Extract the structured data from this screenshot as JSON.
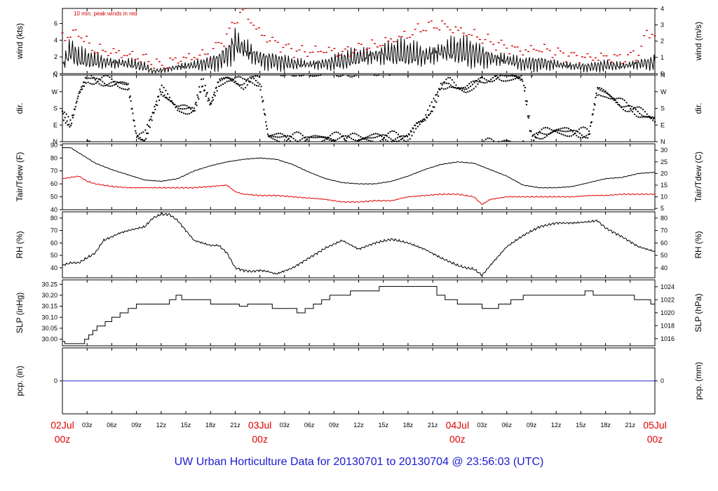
{
  "colors": {
    "axis": "#000000",
    "peak": "#d40000",
    "dewpoint": "#e00000",
    "precip": "#2020c0",
    "date_label": "#e00000",
    "footer": "#1a1ad2"
  },
  "footer": {
    "text": "UW Urban Horticulture Data for 20130701  to  20130704 @ 23:56:03  (UTC)"
  },
  "chart_data": {
    "type": "line",
    "x_range": [
      "2013-07-02 00z",
      "2013-07-05 00z"
    ],
    "x_ticks": [
      {
        "hour": 0,
        "label": "02Jul",
        "sub": "00z",
        "major": true
      },
      {
        "hour": 3,
        "label": "03z"
      },
      {
        "hour": 6,
        "label": "06z"
      },
      {
        "hour": 9,
        "label": "09z"
      },
      {
        "hour": 12,
        "label": "12z"
      },
      {
        "hour": 15,
        "label": "15z"
      },
      {
        "hour": 18,
        "label": "18z"
      },
      {
        "hour": 21,
        "label": "21z"
      },
      {
        "hour": 24,
        "label": "03Jul",
        "sub": "00z",
        "major": true
      },
      {
        "hour": 27,
        "label": "03z"
      },
      {
        "hour": 30,
        "label": "06z"
      },
      {
        "hour": 33,
        "label": "09z"
      },
      {
        "hour": 36,
        "label": "12z"
      },
      {
        "hour": 39,
        "label": "15z"
      },
      {
        "hour": 42,
        "label": "18z"
      },
      {
        "hour": 45,
        "label": "21z"
      },
      {
        "hour": 48,
        "label": "04Jul",
        "sub": "00z",
        "major": true
      },
      {
        "hour": 51,
        "label": "03z"
      },
      {
        "hour": 54,
        "label": "06z"
      },
      {
        "hour": 57,
        "label": "09z"
      },
      {
        "hour": 60,
        "label": "12z"
      },
      {
        "hour": 63,
        "label": "15z"
      },
      {
        "hour": 66,
        "label": "18z"
      },
      {
        "hour": 69,
        "label": "21z"
      },
      {
        "hour": 72,
        "label": "05Jul",
        "sub": "00z",
        "major": true
      }
    ],
    "panels": [
      {
        "id": "wind",
        "ylabel_left": "wind (kts)",
        "ylabel_right": "wind (m/s)",
        "ylim": [
          0,
          7.8
        ],
        "left_ticks": [
          0,
          2,
          4,
          6
        ],
        "right_ticks": [
          0,
          1,
          2,
          3,
          4
        ],
        "right_factor": 0.5144,
        "annotation": "10 min. peak winds in red",
        "series": [
          {
            "role": "wind-speed",
            "x": [
              0,
              1,
              2,
              4,
              6,
              8,
              10,
              11,
              12,
              14,
              16,
              18,
              19,
              20,
              21,
              22,
              23,
              24,
              26,
              28,
              30,
              32,
              34,
              36,
              38,
              40,
              42,
              44,
              46,
              48,
              50,
              52,
              54,
              56,
              58,
              60,
              62,
              64,
              66,
              68,
              70,
              72
            ],
            "y": [
              1.0,
              2.8,
              1.8,
              1.5,
              1.3,
              1.2,
              0.8,
              0.3,
              0.4,
              0.8,
              1.0,
              1.3,
              1.6,
              2.3,
              3.6,
              3.0,
              2.4,
              1.8,
              1.5,
              1.2,
              1.1,
              1.2,
              1.5,
              1.9,
              2.2,
              2.4,
              2.3,
              2.1,
              2.6,
              2.7,
              2.4,
              1.9,
              1.6,
              1.2,
              1.3,
              1.1,
              0.9,
              0.8,
              1.0,
              0.9,
              1.2,
              1.3
            ]
          },
          {
            "role": "peak-gust",
            "x": [
              1,
              2,
              3,
              4,
              6,
              8,
              10,
              12,
              14,
              16,
              18,
              20,
              21,
              22,
              24,
              26,
              28,
              30,
              32,
              34,
              36,
              38,
              40,
              42,
              44,
              46,
              48,
              50,
              52,
              54,
              56,
              58,
              60,
              62,
              64,
              66,
              68,
              70,
              71
            ],
            "y": [
              4.5,
              5.0,
              3.6,
              2.8,
              2.6,
              2.2,
              1.8,
              0.9,
              1.7,
              2.0,
              2.5,
              4.5,
              6.4,
              7.6,
              4.8,
              3.6,
              2.8,
              2.6,
              2.8,
              2.5,
              3.0,
              3.4,
              4.0,
              4.6,
              5.6,
              5.8,
              5.2,
              4.6,
              3.8,
              3.2,
              2.7,
              3.0,
              2.5,
              2.1,
              1.9,
              2.0,
              1.8,
              2.4,
              4.8
            ]
          }
        ]
      },
      {
        "id": "dir",
        "ylabel_left": "dir.",
        "ylabel_right": "dir.",
        "ylim": [
          0,
          360
        ],
        "dir_labels": [
          "N",
          "E",
          "S",
          "W",
          "N"
        ],
        "series": [
          {
            "role": "wind-direction",
            "x": [
              0,
              1,
              2,
              3,
              4,
              6,
              8,
              9,
              10,
              12,
              14,
              16,
              17,
              18,
              19,
              20,
              21,
              22,
              23,
              24,
              25,
              27,
              30,
              33,
              36,
              39,
              42,
              43,
              44,
              45,
              46,
              47,
              48,
              49,
              50,
              51,
              53,
              55,
              56,
              57,
              58,
              59,
              60,
              62,
              64,
              65,
              66,
              67,
              68,
              70,
              72
            ],
            "y": [
              150,
              90,
              260,
              345,
              330,
              320,
              300,
              30,
              20,
              280,
              180,
              170,
              320,
              200,
              320,
              340,
              330,
              310,
              340,
              320,
              30,
              20,
              15,
              20,
              15,
              25,
              20,
              90,
              120,
              190,
              300,
              320,
              290,
              280,
              310,
              340,
              350,
              350,
              340,
              20,
              40,
              50,
              60,
              50,
              40,
              280,
              260,
              230,
              200,
              160,
              120
            ]
          }
        ]
      },
      {
        "id": "temp",
        "ylabel_left": "Tair/Tdew (F)",
        "ylabel_right": "Tair/Tdew (C)",
        "ylim": [
          40,
          91
        ],
        "left_ticks": [
          40,
          50,
          60,
          70,
          80,
          90
        ],
        "right_ticks": [
          5,
          10,
          15,
          20,
          25,
          30
        ],
        "right_is_celsius": true,
        "series": [
          {
            "role": "air-temperature",
            "x": [
              0,
              1,
              2,
              4,
              6,
              8,
              10,
              12,
              14,
              16,
              18,
              20,
              22,
              24,
              26,
              28,
              30,
              32,
              34,
              36,
              38,
              40,
              42,
              44,
              46,
              48,
              50,
              52,
              54,
              56,
              58,
              60,
              62,
              64,
              66,
              68,
              70,
              72
            ],
            "y": [
              88,
              88,
              84,
              76,
              71,
              67,
              63,
              62,
              64,
              70,
              74,
              77,
              79,
              80,
              79,
              75,
              69,
              64,
              61,
              60,
              60,
              62,
              66,
              71,
              75,
              77,
              76,
              71,
              66,
              59,
              57,
              57,
              58,
              61,
              64,
              65,
              68,
              69
            ]
          },
          {
            "role": "dew-point",
            "x": [
              0,
              1,
              2,
              3,
              4,
              6,
              8,
              10,
              12,
              14,
              16,
              18,
              20,
              21,
              22,
              24,
              26,
              28,
              30,
              32,
              34,
              36,
              38,
              40,
              42,
              44,
              46,
              48,
              50,
              51,
              52,
              54,
              56,
              58,
              60,
              62,
              64,
              66,
              68,
              70,
              72
            ],
            "y": [
              64,
              65,
              66,
              62,
              60,
              58,
              57,
              57,
              57,
              57,
              57,
              58,
              59,
              54,
              52,
              51,
              51,
              50,
              49,
              48,
              46,
              46,
              47,
              47,
              50,
              51,
              52,
              52,
              50,
              44,
              48,
              50,
              50,
              50,
              50,
              50,
              51,
              51,
              52,
              52,
              52
            ]
          }
        ]
      },
      {
        "id": "rh",
        "ylabel_left": "RH (%)",
        "ylabel_right": "RH (%)",
        "ylim": [
          32,
          85
        ],
        "left_ticks": [
          40,
          50,
          60,
          70,
          80
        ],
        "right_ticks": [
          40,
          50,
          60,
          70,
          80
        ],
        "series": [
          {
            "role": "relative-humidity",
            "x": [
              0,
              1,
              2,
              4,
              5,
              7,
              8,
              10,
              11,
              12,
              13,
              14,
              16,
              18,
              19,
              20,
              21,
              22,
              23,
              24,
              25,
              26,
              28,
              30,
              32,
              34,
              36,
              38,
              40,
              42,
              44,
              46,
              48,
              49,
              50,
              51,
              52,
              54,
              56,
              58,
              60,
              62,
              64,
              65,
              66,
              68,
              70,
              72
            ],
            "y": [
              42,
              44,
              44,
              52,
              62,
              68,
              70,
              73,
              80,
              83,
              83,
              78,
              62,
              58,
              58,
              52,
              40,
              38,
              37,
              38,
              37,
              35,
              40,
              48,
              56,
              62,
              55,
              60,
              63,
              60,
              55,
              48,
              42,
              40,
              39,
              34,
              42,
              57,
              66,
              73,
              76,
              76,
              77,
              78,
              72,
              65,
              57,
              53
            ]
          }
        ]
      },
      {
        "id": "slp",
        "ylabel_left": "SLP (inHg)",
        "ylabel_right": "SLP (hPa)",
        "ylim": [
          29.97,
          30.27
        ],
        "left_ticks": [
          30.0,
          30.05,
          30.1,
          30.15,
          30.2,
          30.25
        ],
        "right_ticks": [
          1016,
          1018,
          1020,
          1022,
          1024
        ],
        "right_is_hpa": true,
        "series": [
          {
            "role": "sea-level-pressure",
            "step": true,
            "x": [
              0,
              0.3,
              2.2,
              2.7,
              3.2,
              3.7,
              4.2,
              5.2,
              6,
              7,
              8,
              9,
              13,
              13.8,
              14.5,
              18,
              21.5,
              22.5,
              25.5,
              28.5,
              29.5,
              30.5,
              31.5,
              32.5,
              35,
              38.5,
              45.5,
              46.5,
              48,
              51,
              53,
              54.5,
              56,
              57,
              58.5,
              63.5,
              64.5,
              65,
              66,
              68.5,
              69.5,
              71.5,
              72
            ],
            "y": [
              29.99,
              29.98,
              29.98,
              30.0,
              30.02,
              30.04,
              30.06,
              30.08,
              30.1,
              30.12,
              30.14,
              30.16,
              30.18,
              30.2,
              30.18,
              30.16,
              30.15,
              30.16,
              30.14,
              30.12,
              30.14,
              30.16,
              30.18,
              30.2,
              30.22,
              30.24,
              30.2,
              30.18,
              30.16,
              30.14,
              30.16,
              30.18,
              30.2,
              30.2,
              30.2,
              30.22,
              30.2,
              30.2,
              30.2,
              30.2,
              30.18,
              30.16,
              30.14
            ]
          }
        ]
      },
      {
        "id": "pcp",
        "ylabel_left": "pcp. (in)",
        "ylabel_right": "pcp. (mm)",
        "ylim": [
          -1,
          1
        ],
        "left_ticks": [
          0
        ],
        "right_ticks": [
          0
        ],
        "right_factor": 25.4,
        "series": [
          {
            "role": "precipitation",
            "x": [
              0,
              72
            ],
            "y": [
              0,
              0
            ]
          }
        ]
      }
    ]
  }
}
